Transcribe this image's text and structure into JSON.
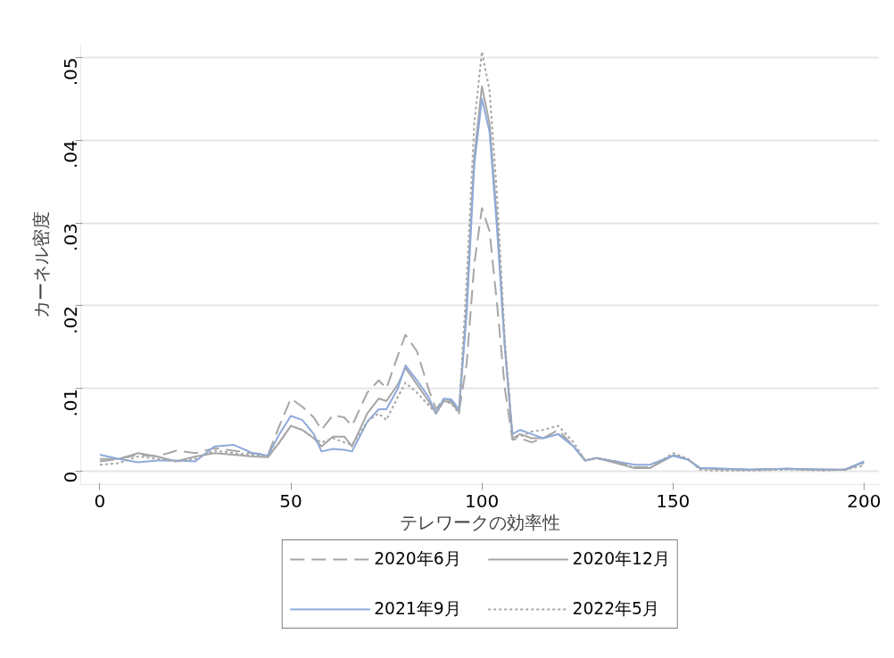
{
  "chart_data": {
    "type": "line",
    "xlabel": "テレワークの効率性",
    "ylabel": "カーネル密度",
    "x": [
      0,
      5,
      10,
      15,
      20,
      25,
      30,
      35,
      40,
      44,
      47,
      50,
      53,
      56,
      58,
      61,
      64,
      66,
      70,
      73,
      75,
      78,
      80,
      83,
      86,
      88,
      90,
      92,
      94,
      96,
      98,
      100,
      102,
      104,
      106,
      108,
      110,
      113,
      116,
      120,
      124,
      127,
      130,
      135,
      140,
      144,
      150,
      154,
      157,
      160,
      170,
      180,
      190,
      195,
      200
    ],
    "series": [
      {
        "name": "2020年6月",
        "color": "#a6a6a6",
        "line_style": "dashed",
        "values": [
          0.0012,
          0.0015,
          0.002,
          0.0018,
          0.0025,
          0.0022,
          0.0028,
          0.0025,
          0.0022,
          0.002,
          0.0055,
          0.0088,
          0.0078,
          0.0065,
          0.005,
          0.0068,
          0.0065,
          0.0055,
          0.0095,
          0.011,
          0.01,
          0.014,
          0.0165,
          0.0145,
          0.01,
          0.0075,
          0.0088,
          0.0085,
          0.0072,
          0.013,
          0.025,
          0.0318,
          0.029,
          0.02,
          0.01,
          0.0038,
          0.004,
          0.0035,
          0.004,
          0.005,
          0.003,
          0.0014,
          0.0016,
          0.0012,
          0.0005,
          0.0005,
          0.002,
          0.0014,
          0.0004,
          0.0003,
          0.0002,
          0.0003,
          0.0002,
          0.0002,
          0.001
        ]
      },
      {
        "name": "2020年12月",
        "color": "#a6a6a6",
        "line_style": "solid",
        "values": [
          0.0015,
          0.0015,
          0.0022,
          0.0018,
          0.0012,
          0.0018,
          0.0022,
          0.002,
          0.0018,
          0.0017,
          0.0035,
          0.0055,
          0.005,
          0.004,
          0.003,
          0.0042,
          0.0042,
          0.003,
          0.007,
          0.0088,
          0.0085,
          0.0105,
          0.0125,
          0.0105,
          0.0085,
          0.007,
          0.0085,
          0.0083,
          0.0072,
          0.02,
          0.038,
          0.0465,
          0.042,
          0.03,
          0.015,
          0.004,
          0.0045,
          0.004,
          0.004,
          0.0045,
          0.003,
          0.0013,
          0.0016,
          0.001,
          0.0004,
          0.0004,
          0.0019,
          0.0014,
          0.0004,
          0.0003,
          0.0002,
          0.0003,
          0.0002,
          0.0002,
          0.0011
        ]
      },
      {
        "name": "2021年9月",
        "color": "#8eaadb",
        "line_style": "solid",
        "values": [
          0.002,
          0.0015,
          0.0011,
          0.0013,
          0.0013,
          0.0012,
          0.003,
          0.0032,
          0.0022,
          0.0019,
          0.0045,
          0.0067,
          0.0062,
          0.0045,
          0.0024,
          0.0027,
          0.0026,
          0.0024,
          0.006,
          0.0075,
          0.0075,
          0.01,
          0.0128,
          0.011,
          0.009,
          0.007,
          0.0088,
          0.0087,
          0.0075,
          0.019,
          0.037,
          0.045,
          0.041,
          0.029,
          0.015,
          0.0045,
          0.005,
          0.0045,
          0.004,
          0.0045,
          0.003,
          0.0013,
          0.0016,
          0.0012,
          0.0008,
          0.0008,
          0.0019,
          0.0014,
          0.0004,
          0.0004,
          0.0002,
          0.0003,
          0.0002,
          0.0002,
          0.0012
        ]
      },
      {
        "name": "2022年5月",
        "color": "#a6a6a6",
        "line_style": "dotted",
        "values": [
          0.0008,
          0.001,
          0.0018,
          0.0015,
          0.0012,
          0.0015,
          0.0025,
          0.0022,
          0.002,
          0.0018,
          0.0035,
          0.0055,
          0.005,
          0.004,
          0.0035,
          0.004,
          0.0035,
          0.0032,
          0.006,
          0.007,
          0.0062,
          0.009,
          0.0107,
          0.0095,
          0.008,
          0.007,
          0.0085,
          0.0082,
          0.007,
          0.023,
          0.042,
          0.0507,
          0.046,
          0.033,
          0.016,
          0.004,
          0.0042,
          0.0048,
          0.005,
          0.0055,
          0.0035,
          0.0013,
          0.0016,
          0.0012,
          0.0004,
          0.0004,
          0.0022,
          0.0015,
          0.0002,
          0.0001,
          0.0001,
          0.0002,
          0.0001,
          0.0002,
          0.0007
        ]
      }
    ],
    "xlim": [
      -5,
      204
    ],
    "xticks": [
      0,
      50,
      100,
      150,
      200
    ],
    "ylim": [
      -0.0016,
      0.0515
    ],
    "yticks": [
      {
        "value": 0,
        "label": "0"
      },
      {
        "value": 0.01,
        "label": ".01"
      },
      {
        "value": 0.02,
        "label": ".02"
      },
      {
        "value": 0.03,
        "label": ".03"
      },
      {
        "value": 0.04,
        "label": ".04"
      },
      {
        "value": 0.05,
        "label": ".05"
      }
    ],
    "grid": "y",
    "legend": "bottom"
  }
}
